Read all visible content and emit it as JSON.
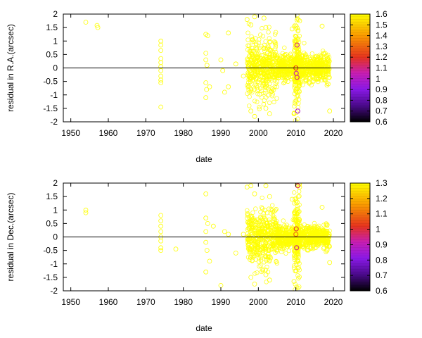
{
  "chart_data": [
    {
      "type": "scatter",
      "xlabel": "date",
      "ylabel": "residual in R.A.(arcsec)",
      "xlim": [
        1948,
        2023
      ],
      "ylim": [
        -2,
        2
      ],
      "xticks": [
        "1950",
        "1960",
        "1970",
        "1980",
        "1990",
        "2000",
        "2010",
        "2020"
      ],
      "yticks": [
        "2",
        "1.5",
        "1",
        "0.5",
        "0",
        "-0.5",
        "-1",
        "-1.5",
        "-2"
      ],
      "zero_line": true,
      "marker": "open-circle",
      "colorbar": {
        "range": [
          0.6,
          1.6
        ],
        "ticks": [
          "1.6",
          "1.5",
          "1.4",
          "1.3",
          "1.2",
          "1.1",
          "1",
          "0.9",
          "0.8",
          "0.7",
          "0.6"
        ]
      },
      "dense_clusters": [
        {
          "x_range": [
            1997,
            2005
          ],
          "y_spread": 0.55,
          "count": 420,
          "value": 1.6
        },
        {
          "x_range": [
            2005,
            2019
          ],
          "y_spread": 0.25,
          "count": 700,
          "value": 1.6
        },
        {
          "x_range": [
            2009.5,
            2011
          ],
          "y_spread": 0.9,
          "count": 160,
          "value": 1.6
        }
      ],
      "points": [
        {
          "x": 1954,
          "y": 1.7,
          "value": 1.6
        },
        {
          "x": 1957,
          "y": 1.58,
          "value": 1.6
        },
        {
          "x": 1957.2,
          "y": 1.5,
          "value": 1.6
        },
        {
          "x": 1974,
          "y": 1.0,
          "value": 1.6
        },
        {
          "x": 1974,
          "y": 0.85,
          "value": 1.6
        },
        {
          "x": 1974,
          "y": 0.65,
          "value": 1.6
        },
        {
          "x": 1974,
          "y": 0.35,
          "value": 1.6
        },
        {
          "x": 1974,
          "y": 0.2,
          "value": 1.6
        },
        {
          "x": 1974,
          "y": 0.05,
          "value": 1.6
        },
        {
          "x": 1974,
          "y": -0.1,
          "value": 1.6
        },
        {
          "x": 1974,
          "y": -0.3,
          "value": 1.6
        },
        {
          "x": 1974,
          "y": -0.45,
          "value": 1.6
        },
        {
          "x": 1974,
          "y": -0.55,
          "value": 1.6
        },
        {
          "x": 1974,
          "y": -1.45,
          "value": 1.6
        },
        {
          "x": 1986,
          "y": 1.25,
          "value": 1.6
        },
        {
          "x": 1986.5,
          "y": 1.2,
          "value": 1.6
        },
        {
          "x": 1986,
          "y": 0.55,
          "value": 1.6
        },
        {
          "x": 1986,
          "y": 0.3,
          "value": 1.6
        },
        {
          "x": 1986.3,
          "y": 0.1,
          "value": 1.6
        },
        {
          "x": 1986,
          "y": -0.55,
          "value": 1.6
        },
        {
          "x": 1986.2,
          "y": -0.8,
          "value": 1.6
        },
        {
          "x": 1986,
          "y": -1.1,
          "value": 1.6
        },
        {
          "x": 1987,
          "y": -0.7,
          "value": 1.6
        },
        {
          "x": 1990,
          "y": 0.3,
          "value": 1.6
        },
        {
          "x": 1990.5,
          "y": -0.1,
          "value": 1.6
        },
        {
          "x": 1991,
          "y": -0.9,
          "value": 1.6
        },
        {
          "x": 1992,
          "y": 1.3,
          "value": 1.6
        },
        {
          "x": 1992,
          "y": -0.7,
          "value": 1.6
        },
        {
          "x": 1994,
          "y": 0.15,
          "value": 1.6
        },
        {
          "x": 1996,
          "y": -0.3,
          "value": 1.6
        },
        {
          "x": 1997,
          "y": 1.8,
          "value": 1.6
        },
        {
          "x": 1998,
          "y": 1.6,
          "value": 1.6
        },
        {
          "x": 1999,
          "y": 1.9,
          "value": 1.6
        },
        {
          "x": 2001.5,
          "y": 1.85,
          "value": 1.6
        },
        {
          "x": 2002,
          "y": 1.5,
          "value": 1.6
        },
        {
          "x": 1998,
          "y": -1.6,
          "value": 1.6
        },
        {
          "x": 1999,
          "y": -1.8,
          "value": 1.6
        },
        {
          "x": 2002,
          "y": -1.5,
          "value": 1.6
        },
        {
          "x": 2003,
          "y": -1.7,
          "value": 1.6
        },
        {
          "x": 2009,
          "y": 1.45,
          "value": 1.6
        },
        {
          "x": 2011,
          "y": 1.75,
          "value": 1.6
        },
        {
          "x": 2009.5,
          "y": -1.7,
          "value": 1.6
        },
        {
          "x": 2017,
          "y": 1.55,
          "value": 1.6
        },
        {
          "x": 2019,
          "y": -1.6,
          "value": 1.6
        },
        {
          "x": 2010.3,
          "y": 0.85,
          "value": 1.1
        },
        {
          "x": 2010.1,
          "y": -0.2,
          "value": 1.05
        },
        {
          "x": 2010.3,
          "y": -0.35,
          "value": 1.1
        },
        {
          "x": 2010.5,
          "y": -1.6,
          "value": 1.0
        },
        {
          "x": 2010.0,
          "y": 0.0,
          "value": 1.2
        }
      ]
    },
    {
      "type": "scatter",
      "xlabel": "date",
      "ylabel": "residual in Dec.(arcsec)",
      "xlim": [
        1948,
        2023
      ],
      "ylim": [
        -2,
        2
      ],
      "xticks": [
        "1950",
        "1960",
        "1970",
        "1980",
        "1990",
        "2000",
        "2010",
        "2020"
      ],
      "yticks": [
        "2",
        "1.5",
        "1",
        "0.5",
        "0",
        "-0.5",
        "-1",
        "-1.5",
        "-2"
      ],
      "zero_line": true,
      "marker": "open-circle",
      "colorbar": {
        "range": [
          0.6,
          1.3
        ],
        "ticks": [
          "1.3",
          "1.2",
          "1.1",
          "1",
          "0.9",
          "0.8",
          "0.7",
          "0.6"
        ]
      },
      "dense_clusters": [
        {
          "x_range": [
            1997,
            2005
          ],
          "y_spread": 0.5,
          "count": 420,
          "value": 1.3
        },
        {
          "x_range": [
            2005,
            2019
          ],
          "y_spread": 0.22,
          "count": 700,
          "value": 1.3
        },
        {
          "x_range": [
            2009.5,
            2011
          ],
          "y_spread": 0.8,
          "count": 160,
          "value": 1.3
        }
      ],
      "points": [
        {
          "x": 1954,
          "y": 1.0,
          "value": 1.3
        },
        {
          "x": 1954,
          "y": 0.9,
          "value": 1.3
        },
        {
          "x": 1974,
          "y": 0.8,
          "value": 1.3
        },
        {
          "x": 1974,
          "y": 0.6,
          "value": 1.3
        },
        {
          "x": 1974,
          "y": 0.4,
          "value": 1.3
        },
        {
          "x": 1974,
          "y": 0.2,
          "value": 1.3
        },
        {
          "x": 1974,
          "y": 0.0,
          "value": 1.3
        },
        {
          "x": 1974,
          "y": -0.15,
          "value": 1.3
        },
        {
          "x": 1974,
          "y": -0.4,
          "value": 1.3
        },
        {
          "x": 1974,
          "y": -0.5,
          "value": 1.3
        },
        {
          "x": 1978,
          "y": -0.45,
          "value": 1.3
        },
        {
          "x": 1986,
          "y": 1.6,
          "value": 1.3
        },
        {
          "x": 1986,
          "y": 0.7,
          "value": 1.3
        },
        {
          "x": 1986.5,
          "y": 0.5,
          "value": 1.3
        },
        {
          "x": 1986,
          "y": 0.2,
          "value": 1.3
        },
        {
          "x": 1986,
          "y": -0.2,
          "value": 1.3
        },
        {
          "x": 1986.3,
          "y": -0.5,
          "value": 1.3
        },
        {
          "x": 1986,
          "y": -1.3,
          "value": 1.3
        },
        {
          "x": 1987,
          "y": -0.9,
          "value": 1.3
        },
        {
          "x": 1988,
          "y": 0.4,
          "value": 1.3
        },
        {
          "x": 1990,
          "y": -1.8,
          "value": 1.3
        },
        {
          "x": 1991,
          "y": 0.2,
          "value": 1.3
        },
        {
          "x": 1992,
          "y": 0.1,
          "value": 1.3
        },
        {
          "x": 1994,
          "y": -0.6,
          "value": 1.3
        },
        {
          "x": 1996,
          "y": 0.1,
          "value": 1.3
        },
        {
          "x": 1997,
          "y": 1.85,
          "value": 1.3
        },
        {
          "x": 1998,
          "y": 1.9,
          "value": 1.3
        },
        {
          "x": 1999,
          "y": 1.6,
          "value": 1.3
        },
        {
          "x": 2002,
          "y": 1.9,
          "value": 1.3
        },
        {
          "x": 2003,
          "y": 1.5,
          "value": 1.3
        },
        {
          "x": 1998,
          "y": -1.5,
          "value": 1.3
        },
        {
          "x": 1999,
          "y": -1.75,
          "value": 1.3
        },
        {
          "x": 2002,
          "y": -1.4,
          "value": 1.3
        },
        {
          "x": 2003,
          "y": -1.6,
          "value": 1.3
        },
        {
          "x": 2009,
          "y": 1.4,
          "value": 1.3
        },
        {
          "x": 2011,
          "y": 1.85,
          "value": 1.3
        },
        {
          "x": 2009.5,
          "y": -1.65,
          "value": 1.3
        },
        {
          "x": 2017,
          "y": 1.1,
          "value": 1.3
        },
        {
          "x": 2019,
          "y": -0.95,
          "value": 1.3
        },
        {
          "x": 2010.5,
          "y": 1.9,
          "value": 1.0
        },
        {
          "x": 2010.1,
          "y": 0.3,
          "value": 1.0
        },
        {
          "x": 2010.2,
          "y": -0.4,
          "value": 0.95
        },
        {
          "x": 2010.0,
          "y": 0.1,
          "value": 1.1
        }
      ]
    }
  ]
}
